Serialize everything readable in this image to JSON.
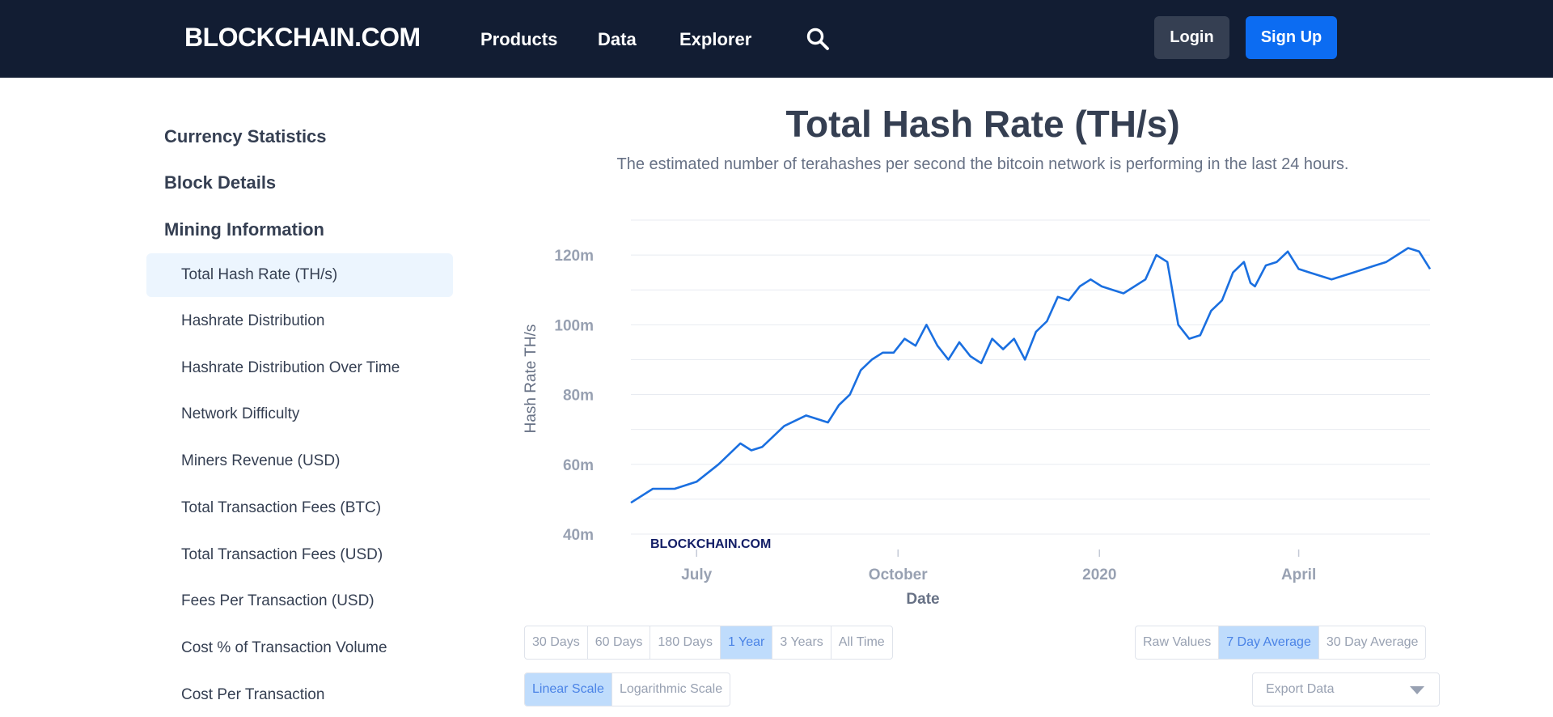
{
  "header": {
    "logo": "BLOCKCHAIN.COM",
    "nav": [
      "Products",
      "Data",
      "Explorer"
    ],
    "login": "Login",
    "signup": "Sign Up"
  },
  "sidebar": {
    "sections": [
      "Currency Statistics",
      "Block Details",
      "Mining Information"
    ],
    "items": [
      "Total Hash Rate (TH/s)",
      "Hashrate Distribution",
      "Hashrate Distribution Over Time",
      "Network Difficulty",
      "Miners Revenue (USD)",
      "Total Transaction Fees (BTC)",
      "Total Transaction Fees (USD)",
      "Fees Per Transaction (USD)",
      "Cost % of Transaction Volume",
      "Cost Per Transaction"
    ],
    "active_index": 0
  },
  "chart_data": {
    "type": "line",
    "title": "Total Hash Rate (TH/s)",
    "subtitle": "The estimated number of terahashes per second the bitcoin network is performing in the last 24 hours.",
    "xlabel": "Date",
    "ylabel": "Hash Rate TH/s",
    "ylim": [
      40,
      130
    ],
    "yticks": [
      40,
      60,
      80,
      100,
      120
    ],
    "ytick_labels": [
      "40m",
      "60m",
      "80m",
      "100m",
      "120m"
    ],
    "xticks": [
      {
        "day": 30,
        "label": "July"
      },
      {
        "day": 122,
        "label": "October"
      },
      {
        "day": 214,
        "label": "2020"
      },
      {
        "day": 305,
        "label": "April"
      }
    ],
    "x_range_days": [
      0,
      365
    ],
    "watermark": "BLOCKCHAIN.COM",
    "series": [
      {
        "name": "7 Day Average",
        "color": "#1a6fe0",
        "x": [
          0,
          10,
          20,
          30,
          40,
          50,
          55,
          60,
          70,
          80,
          90,
          95,
          100,
          105,
          110,
          115,
          120,
          125,
          130,
          135,
          140,
          145,
          150,
          155,
          160,
          165,
          170,
          175,
          180,
          185,
          190,
          195,
          200,
          205,
          210,
          215,
          220,
          225,
          230,
          235,
          240,
          245,
          250,
          255,
          260,
          265,
          270,
          275,
          280,
          283,
          285,
          290,
          295,
          300,
          305,
          310,
          315,
          320,
          325,
          330,
          335,
          340,
          345,
          350,
          355,
          360,
          365
        ],
        "y": [
          49,
          53,
          53,
          55,
          60,
          66,
          64,
          65,
          71,
          74,
          72,
          77,
          80,
          87,
          90,
          92,
          92,
          96,
          94,
          100,
          94,
          90,
          95,
          91,
          89,
          96,
          93,
          96,
          90,
          98,
          101,
          108,
          107,
          111,
          113,
          111,
          110,
          109,
          111,
          113,
          120,
          118,
          100,
          96,
          97,
          104,
          107,
          115,
          118,
          112,
          111,
          117,
          118,
          121,
          116,
          115,
          114,
          113,
          114,
          115,
          116,
          117,
          118,
          120,
          122,
          121,
          116
        ]
      }
    ]
  },
  "controls": {
    "ranges": [
      "30 Days",
      "60 Days",
      "180 Days",
      "1 Year",
      "3 Years",
      "All Time"
    ],
    "range_selected": "1 Year",
    "averages": [
      "Raw Values",
      "7 Day Average",
      "30 Day Average"
    ],
    "average_selected": "7 Day Average",
    "scales": [
      "Linear Scale",
      "Logarithmic Scale"
    ],
    "scale_selected": "Linear Scale",
    "export_label": "Export Data"
  },
  "colors": {
    "header_bg": "#121d33",
    "accent": "#0c6cf2",
    "line": "#1a6fe0",
    "selected_bg": "#bfdcfc"
  }
}
